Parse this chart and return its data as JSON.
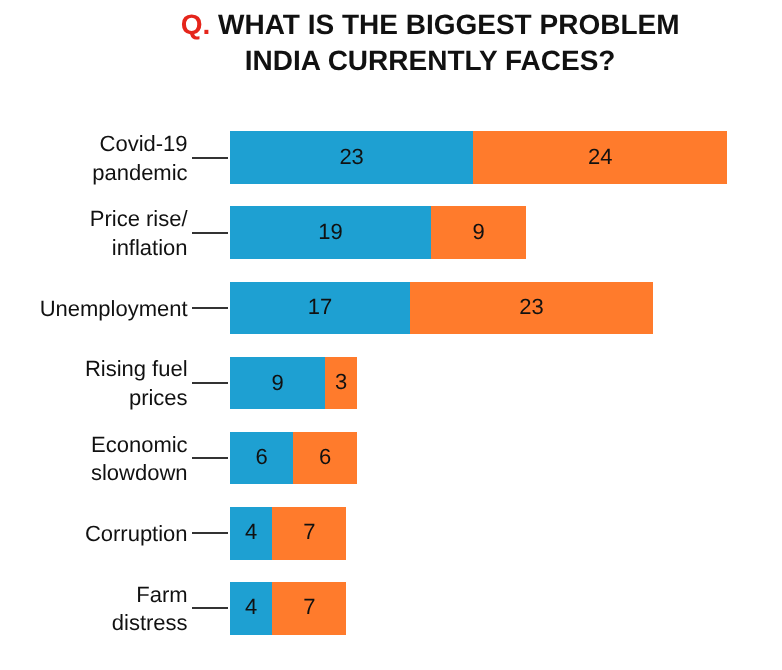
{
  "chart_data": {
    "type": "bar",
    "orientation": "horizontal",
    "stacked": true,
    "title": "Q. WHAT IS THE BIGGEST PROBLEM INDIA CURRENTLY FACES?",
    "categories": [
      "Covid-19 pandemic",
      "Price rise/ inflation",
      "Unemployment",
      "Rising fuel prices",
      "Economic slowdown",
      "Corruption",
      "Farm distress"
    ],
    "series": [
      {
        "color": "#1ea0d2",
        "values": [
          23,
          19,
          17,
          9,
          6,
          4,
          4
        ]
      },
      {
        "color": "#ff7b2c",
        "values": [
          24,
          9,
          23,
          3,
          6,
          7,
          7
        ]
      }
    ],
    "data_labels": true,
    "tick_labels": "y"
  }
}
